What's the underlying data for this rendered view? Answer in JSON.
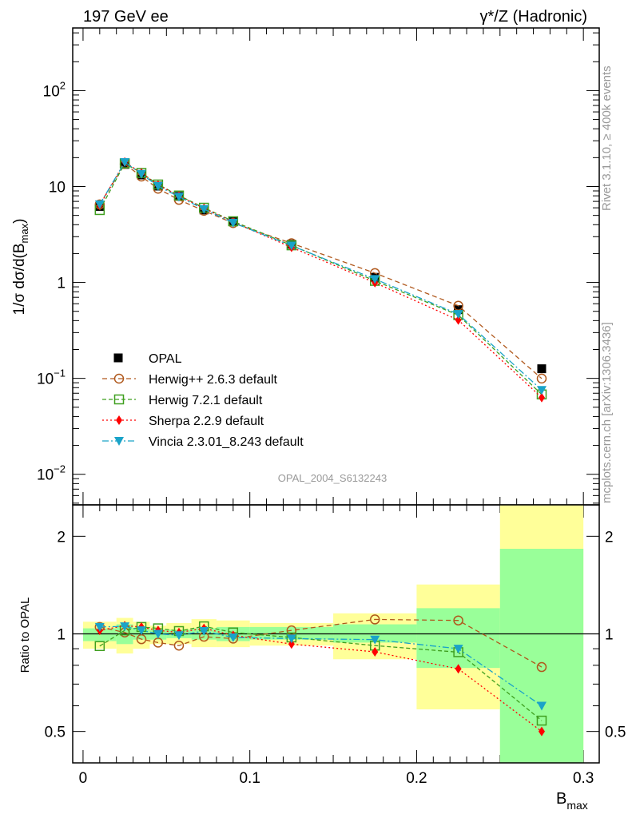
{
  "header": {
    "left": "197 GeV ee",
    "right": "γ*/Z (Hadronic)"
  },
  "side_labels": {
    "rivet": "Rivet 3.1.10, ≥ 400k events",
    "mcplots": "mcplots.cern.ch [arXiv:1306.3436]"
  },
  "analysis_id": "OPAL_2004_S6132243",
  "chart_data": [
    {
      "type": "scatter",
      "title": "",
      "xlabel": "B_max",
      "ylabel": "1/σ dσ/d(B_max)",
      "yscale": "log",
      "xlim": [
        -0.0062,
        0.3095
      ],
      "ylim": [
        0.0048,
        450
      ],
      "yticks": [
        {
          "v": 0.01,
          "base": "10",
          "exp": "−2"
        },
        {
          "v": 0.1,
          "base": "10",
          "exp": "−1"
        },
        {
          "v": 1,
          "base": "1",
          "exp": ""
        },
        {
          "v": 10,
          "base": "10",
          "exp": ""
        },
        {
          "v": 100,
          "base": "10",
          "exp": "2"
        }
      ],
      "x": [
        0.01,
        0.025,
        0.035,
        0.045,
        0.0575,
        0.0725,
        0.09,
        0.125,
        0.175,
        0.225,
        0.275
      ],
      "data": {
        "name": "OPAL",
        "values": [
          6.2,
          17.0,
          13.2,
          10.1,
          7.9,
          5.7,
          4.3,
          2.5,
          1.13,
          0.52,
          0.126
        ]
      },
      "legend_placement": "lower-left",
      "series": [
        {
          "name": "Herwig++ 2.6.3 default",
          "color": "#b0581c",
          "marker": "open-circle",
          "dash": "6,4",
          "ratio": [
            1.05,
            1.01,
            0.963,
            0.94,
            0.92,
            0.98,
            0.967,
            1.025,
            1.108,
            1.1,
            0.79
          ]
        },
        {
          "name": "Herwig 7.2.1 default",
          "color": "#3f9f1f",
          "marker": "open-square",
          "dash": "5,3",
          "ratio": [
            0.917,
            1.025,
            1.05,
            1.04,
            1.02,
            1.055,
            1.01,
            0.975,
            0.92,
            0.878,
            0.54
          ]
        },
        {
          "name": "Sherpa 2.2.9 default",
          "color": "#ff0000",
          "marker": "diamond",
          "dash": "2,3",
          "ratio": [
            1.025,
            1.06,
            1.05,
            1.025,
            1.01,
            1.04,
            0.99,
            0.93,
            0.88,
            0.78,
            0.5
          ]
        },
        {
          "name": "Vincia 2.3.01_8.243 default",
          "color": "#1aa3c8",
          "marker": "down-triangle",
          "dash": "8,3,2,3",
          "ratio": [
            1.05,
            1.055,
            1.025,
            1.0,
            0.99,
            1.02,
            0.975,
            0.967,
            0.96,
            0.9,
            0.6
          ]
        }
      ]
    },
    {
      "type": "scatter",
      "ylabel": "Ratio to OPAL",
      "xlabel": "B_max",
      "yscale": "log",
      "ylim": [
        0.4,
        2.5
      ],
      "yticks": [
        0.5,
        1,
        2
      ],
      "ytick_labels": [
        "0.5",
        "1",
        "2"
      ],
      "xticks": [
        0,
        0.1,
        0.2,
        0.3
      ],
      "xtick_labels": [
        "0",
        "0.1",
        "0.2",
        "0.3"
      ],
      "bin_edges": [
        0,
        0.02,
        0.03,
        0.04,
        0.05,
        0.065,
        0.08,
        0.1,
        0.15,
        0.2,
        0.25,
        0.3
      ],
      "band_total": [
        [
          0.9,
          1.09
        ],
        [
          0.87,
          1.12
        ],
        [
          0.9,
          1.09
        ],
        [
          0.93,
          1.06
        ],
        [
          0.93,
          1.08
        ],
        [
          0.91,
          1.11
        ],
        [
          0.91,
          1.1
        ],
        [
          0.92,
          1.08
        ],
        [
          0.835,
          1.157
        ],
        [
          0.585,
          1.42
        ],
        [
          0.3,
          3.0
        ]
      ],
      "band_stat": [
        [
          0.95,
          1.04
        ],
        [
          0.93,
          1.07
        ],
        [
          0.96,
          1.04
        ],
        [
          0.96,
          1.03
        ],
        [
          0.97,
          1.03
        ],
        [
          0.96,
          1.04
        ],
        [
          0.95,
          1.05
        ],
        [
          0.96,
          1.05
        ],
        [
          0.94,
          1.07
        ],
        [
          0.785,
          1.2
        ],
        [
          0.3,
          1.83
        ]
      ],
      "band_total_color": "#ffff99",
      "band_stat_color": "#99ff99"
    }
  ]
}
